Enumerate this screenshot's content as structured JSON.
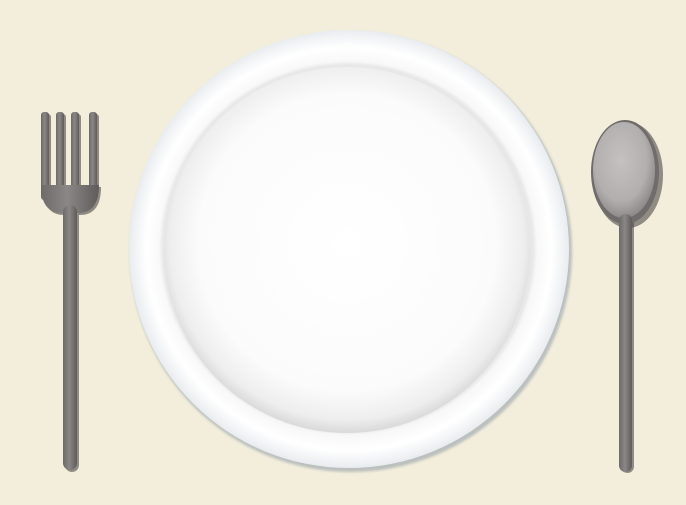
{
  "scene": {
    "description_items": [
      "fork",
      "plate",
      "spoon"
    ],
    "colors": {
      "placemat": "#f2eedb",
      "plate_rim": "#ffffff",
      "plate_center": "#fdfcfc",
      "plate_edge_shadow": "#8f9aa6",
      "cutlery": "#807d7c",
      "cutlery_dark": "#5f5c5b",
      "spoon_bowl": "#b4b1b0"
    },
    "icons": {
      "fork": "fork-icon",
      "plate": "plate-icon",
      "spoon": "spoon-icon"
    }
  }
}
